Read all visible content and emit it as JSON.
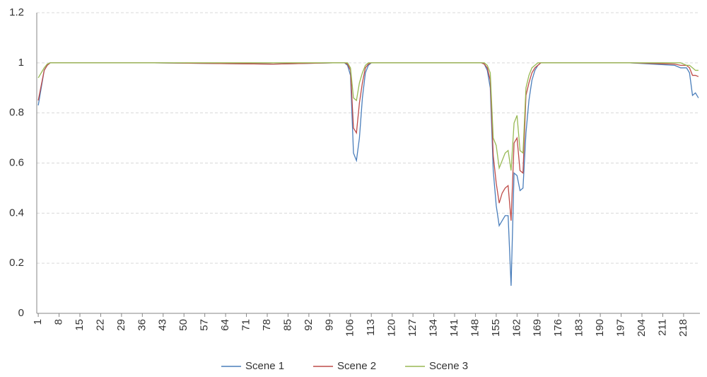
{
  "chart_data": {
    "type": "line",
    "x": [
      1,
      2,
      3,
      4,
      5,
      20,
      40,
      80,
      100,
      104,
      105,
      106,
      107,
      108,
      109,
      110,
      111,
      112,
      113,
      120,
      150,
      151,
      152,
      153,
      154,
      155,
      156,
      157,
      158,
      159,
      160,
      161,
      162,
      163,
      164,
      165,
      166,
      167,
      168,
      169,
      170,
      200,
      215,
      217,
      219,
      220,
      221,
      222,
      223
    ],
    "series": [
      {
        "name": "Scene 1",
        "color": "#4a7ebb",
        "values": [
          0.83,
          0.9,
          0.97,
          0.99,
          1,
          1,
          1,
          0.995,
          1,
          1,
          0.99,
          0.95,
          0.64,
          0.61,
          0.7,
          0.86,
          0.96,
          0.99,
          1,
          1,
          1,
          0.995,
          0.97,
          0.9,
          0.57,
          0.43,
          0.35,
          0.37,
          0.39,
          0.39,
          0.11,
          0.56,
          0.55,
          0.49,
          0.5,
          0.72,
          0.85,
          0.93,
          0.97,
          0.99,
          1,
          1,
          0.99,
          0.98,
          0.98,
          0.96,
          0.87,
          0.88,
          0.86
        ]
      },
      {
        "name": "Scene 2",
        "color": "#be4b48",
        "values": [
          0.85,
          0.91,
          0.97,
          0.99,
          1,
          1,
          1,
          0.995,
          1,
          1,
          0.995,
          0.97,
          0.74,
          0.72,
          0.84,
          0.92,
          0.98,
          0.995,
          1,
          1,
          1,
          0.995,
          0.98,
          0.93,
          0.63,
          0.52,
          0.44,
          0.48,
          0.5,
          0.51,
          0.37,
          0.68,
          0.7,
          0.57,
          0.56,
          0.87,
          0.92,
          0.96,
          0.98,
          0.99,
          1,
          1,
          0.995,
          0.99,
          0.99,
          0.98,
          0.95,
          0.95,
          0.945
        ]
      },
      {
        "name": "Scene 3",
        "color": "#98b954",
        "values": [
          0.94,
          0.96,
          0.98,
          0.995,
          1,
          1,
          1,
          1,
          1,
          1,
          1,
          0.98,
          0.86,
          0.85,
          0.92,
          0.96,
          0.99,
          1,
          1,
          1,
          1,
          1,
          0.99,
          0.96,
          0.7,
          0.67,
          0.58,
          0.61,
          0.64,
          0.65,
          0.57,
          0.76,
          0.79,
          0.65,
          0.64,
          0.9,
          0.95,
          0.98,
          0.99,
          1,
          1,
          1,
          1,
          1,
          0.99,
          0.99,
          0.98,
          0.97,
          0.97
        ]
      }
    ],
    "xlim": [
      0.5,
      223.5
    ],
    "xticks": [
      1,
      8,
      15,
      22,
      29,
      36,
      43,
      50,
      57,
      64,
      71,
      78,
      85,
      92,
      99,
      106,
      113,
      120,
      127,
      134,
      141,
      148,
      155,
      162,
      169,
      176,
      183,
      190,
      197,
      204,
      211,
      218
    ],
    "ylim": [
      0,
      1.2
    ],
    "yticks": [
      0,
      0.2,
      0.4,
      0.6,
      0.8,
      1,
      1.2
    ],
    "grid": true,
    "legend": "bottom"
  }
}
